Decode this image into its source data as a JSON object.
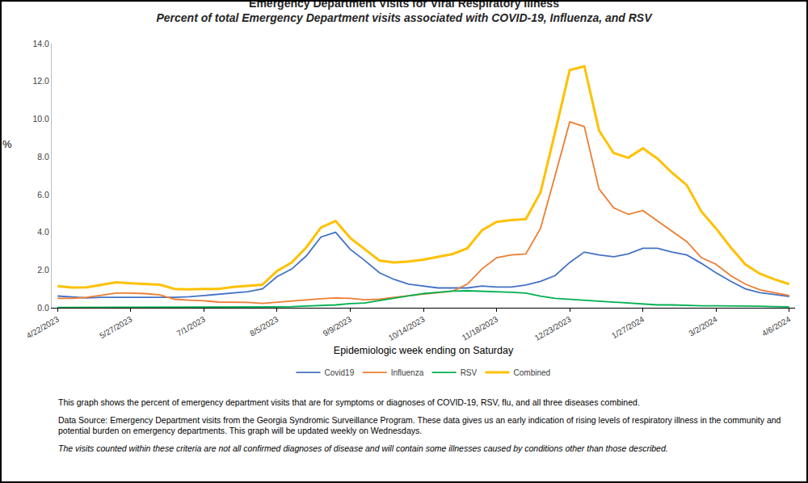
{
  "chart_data": {
    "type": "line",
    "title": "Emergency Department Visits for Viral Respiratory Illness",
    "subtitle": "Percent of total Emergency Department visits associated with COVID-19, Influenza, and RSV",
    "x_label": "Epidemiologic week ending on Saturday",
    "y_label": "%",
    "categories": [
      "4/22/2023",
      null,
      null,
      null,
      null,
      "5/27/2023",
      null,
      null,
      null,
      null,
      "7/1/2023",
      null,
      null,
      null,
      null,
      "8/5/2023",
      null,
      null,
      null,
      null,
      "9/9/2023",
      null,
      null,
      null,
      null,
      "10/14/2023",
      null,
      null,
      null,
      null,
      "11/18/2023",
      null,
      null,
      null,
      null,
      "12/23/2023",
      null,
      null,
      null,
      null,
      "1/27/2024",
      null,
      null,
      null,
      null,
      "3/2/2024",
      null,
      null,
      null,
      null,
      "4/6/2024"
    ],
    "series": [
      {
        "name": "Covid19",
        "color": "#4472C4",
        "line_style": "solid",
        "values": [
          0.62,
          0.58,
          0.52,
          0.55,
          0.55,
          0.52,
          0.52,
          0.55,
          0.55,
          0.58,
          0.65,
          0.72,
          0.8,
          0.85,
          1.0,
          1.65,
          2.05,
          2.75,
          3.75,
          4.0,
          3.1,
          2.5,
          1.85,
          1.5,
          1.25,
          1.15,
          1.05,
          1.05,
          1.05,
          1.15,
          1.1,
          1.1,
          1.2,
          1.4,
          1.7,
          2.4,
          2.95,
          2.8,
          2.7,
          2.85,
          3.15,
          3.15,
          2.95,
          2.8,
          2.35,
          1.85,
          1.4,
          1.0,
          0.8,
          0.7,
          0.6
        ]
      },
      {
        "name": "Influenza",
        "color": "#ED7D31",
        "line_style": "solid",
        "values": [
          0.5,
          0.5,
          0.55,
          0.65,
          0.78,
          0.78,
          0.75,
          0.68,
          0.45,
          0.4,
          0.37,
          0.3,
          0.3,
          0.28,
          0.23,
          0.3,
          0.35,
          0.42,
          0.48,
          0.52,
          0.5,
          0.42,
          0.45,
          0.55,
          0.65,
          0.72,
          0.8,
          0.88,
          1.25,
          2.05,
          2.65,
          2.8,
          2.85,
          4.2,
          7.0,
          9.85,
          9.6,
          6.3,
          5.3,
          4.95,
          5.15,
          4.6,
          4.05,
          3.5,
          2.65,
          2.3,
          1.7,
          1.25,
          0.95,
          0.8,
          0.65
        ]
      },
      {
        "name": "RSV",
        "color": "#00B050",
        "line_style": "solid",
        "values": [
          0.02,
          0.03,
          0.03,
          0.03,
          0.03,
          0.03,
          0.03,
          0.03,
          0.02,
          0.02,
          0.02,
          0.02,
          0.03,
          0.03,
          0.04,
          0.05,
          0.06,
          0.08,
          0.1,
          0.15,
          0.22,
          0.25,
          0.38,
          0.5,
          0.62,
          0.75,
          0.82,
          0.88,
          0.9,
          0.88,
          0.87,
          0.82,
          0.78,
          0.62,
          0.5,
          0.45,
          0.37,
          0.35,
          0.3,
          0.22,
          0.17,
          0.15,
          0.15,
          0.12,
          0.1,
          0.1,
          0.1,
          0.08,
          0.08,
          0.06,
          0.05
        ]
      },
      {
        "name": "Combined",
        "color": "#FFC000",
        "line_style": "solid",
        "values": [
          1.15,
          1.07,
          1.08,
          1.2,
          1.35,
          1.3,
          1.27,
          1.22,
          1.0,
          0.97,
          1.0,
          1.0,
          1.1,
          1.15,
          1.22,
          1.95,
          2.4,
          3.2,
          4.25,
          4.6,
          3.7,
          3.1,
          2.5,
          2.4,
          2.45,
          2.55,
          2.7,
          2.85,
          3.15,
          4.1,
          4.55,
          4.65,
          4.7,
          6.1,
          9.3,
          12.6,
          12.8,
          9.4,
          8.2,
          7.95,
          8.45,
          7.9,
          7.15,
          6.5,
          5.1,
          4.2,
          3.2,
          2.3,
          1.8,
          1.5,
          1.25
        ]
      }
    ],
    "ylim": [
      0,
      14
    ],
    "yticks": [
      {
        "value": 0,
        "label": "0.0"
      },
      {
        "value": 2,
        "label": "2.0"
      },
      {
        "value": 4,
        "label": "4.0"
      },
      {
        "value": 6,
        "label": "6.0"
      },
      {
        "value": 8,
        "label": "8.0"
      },
      {
        "value": 10,
        "label": "10.0"
      },
      {
        "value": 12,
        "label": "12.0"
      },
      {
        "value": 14,
        "label": "14.0"
      }
    ],
    "grid": false,
    "legend": "bottom",
    "notes": [
      "This graph shows the percent of emergency department visits that are for symptoms or diagnoses of COVID-19, RSV, flu, and all three diseases combined.",
      "Data Source: Emergency Department visits from the Georgia Syndromic Surveillance Program. These data gives us an early indication of rising levels of respiratory illness in the community and potential burden on emergency departments. This graph will be updated weekly on Wednesdays.",
      "The visits counted within these criteria are not all confirmed diagnoses of disease and will contain some illnesses caused by conditions other than those described."
    ]
  }
}
